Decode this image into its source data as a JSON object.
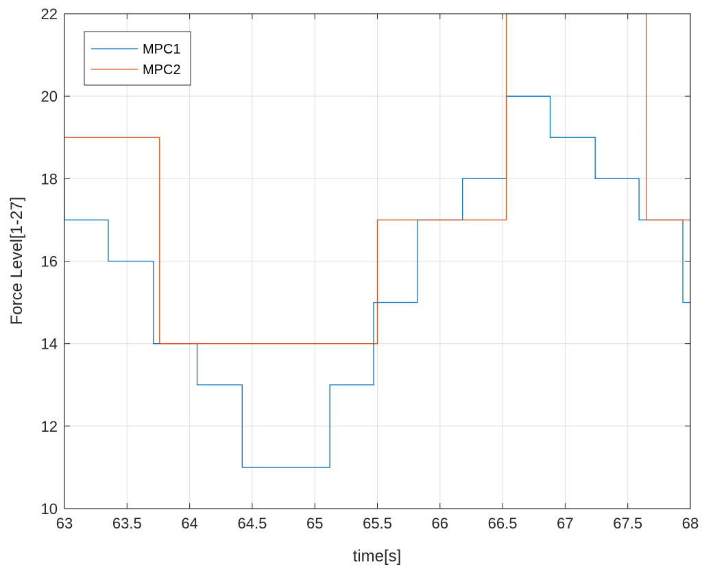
{
  "chart_data": {
    "type": "line",
    "step": true,
    "xlabel": "time[s]",
    "ylabel": "Force Level[1-27]",
    "xlim": [
      63,
      68
    ],
    "ylim": [
      10,
      22
    ],
    "xticks": [
      "63",
      "63.5",
      "64",
      "64.5",
      "65",
      "65.5",
      "66",
      "66.5",
      "67",
      "67.5",
      "68"
    ],
    "yticks": [
      "10",
      "12",
      "14",
      "16",
      "18",
      "20",
      "22"
    ],
    "grid": true,
    "legend_position": "top-left",
    "series": [
      {
        "name": "MPC1",
        "color": "#0072BD",
        "x": [
          63.0,
          63.0,
          63.35,
          63.35,
          63.71,
          63.71,
          64.06,
          64.06,
          64.42,
          64.42,
          65.12,
          65.12,
          65.47,
          65.47,
          65.82,
          65.82,
          66.18,
          66.18,
          66.53,
          66.53,
          66.88,
          66.88,
          67.24,
          67.24,
          67.59,
          67.59,
          67.94,
          67.94,
          68.0
        ],
        "y": [
          18,
          17,
          17,
          16,
          16,
          14,
          14,
          13,
          13,
          11,
          11,
          13,
          13,
          15,
          15,
          17,
          17,
          18,
          18,
          20,
          20,
          19,
          19,
          18,
          18,
          17,
          17,
          15,
          15
        ]
      },
      {
        "name": "MPC2",
        "color": "#D95319",
        "x": [
          63.0,
          63.76,
          63.76,
          65.5,
          65.5,
          66.53,
          66.53,
          67.65,
          67.65,
          68.0
        ],
        "y": [
          19,
          19,
          14,
          14,
          17,
          17,
          22,
          22,
          17,
          17
        ]
      }
    ]
  }
}
